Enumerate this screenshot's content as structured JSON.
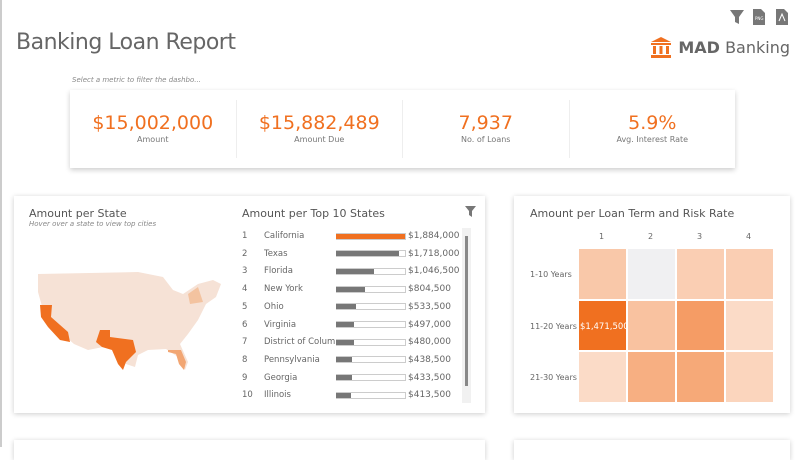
{
  "header": {
    "title": "Banking Loan Report",
    "brand_strong": "MAD",
    "brand_rest": "Banking",
    "icons": [
      "filter-icon",
      "png-export-icon",
      "pdf-export-icon",
      "bank-icon"
    ],
    "hint": "Select a metric to filter the dashbo..."
  },
  "kpis": [
    {
      "value": "$15,002,000",
      "label": "Amount"
    },
    {
      "value": "$15,882,489",
      "label": "Amount Due"
    },
    {
      "value": "7,937",
      "label": "No. of Loans"
    },
    {
      "value": "5.9%",
      "label": "Avg. Interest Rate"
    }
  ],
  "colors": {
    "accent": "#f07020",
    "bar": "#777777"
  },
  "map": {
    "title": "Amount per State",
    "subtitle": "Hover over a state to view top cities",
    "highlighted": [
      "California",
      "Texas",
      "Florida",
      "New York"
    ]
  },
  "top_states": {
    "title": "Amount per Top 10 States",
    "rows": [
      {
        "rank": "1",
        "name": "California",
        "amount": "$1,884,000",
        "value": 1884000
      },
      {
        "rank": "2",
        "name": "Texas",
        "amount": "$1,718,000",
        "value": 1718000
      },
      {
        "rank": "3",
        "name": "Florida",
        "amount": "$1,046,500",
        "value": 1046500
      },
      {
        "rank": "4",
        "name": "New York",
        "amount": "$804,500",
        "value": 804500
      },
      {
        "rank": "5",
        "name": "Ohio",
        "amount": "$533,500",
        "value": 533500
      },
      {
        "rank": "6",
        "name": "Virginia",
        "amount": "$497,000",
        "value": 497000
      },
      {
        "rank": "7",
        "name": "District of Colum...",
        "amount": "$480,000",
        "value": 480000
      },
      {
        "rank": "8",
        "name": "Pennsylvania",
        "amount": "$438,500",
        "value": 438500
      },
      {
        "rank": "9",
        "name": "Georgia",
        "amount": "$433,500",
        "value": 433500
      },
      {
        "rank": "10",
        "name": "Illinois",
        "amount": "$413,500",
        "value": 413500
      }
    ]
  },
  "heatmap": {
    "title": "Amount per Loan Term and Risk Rate",
    "columns": [
      "1",
      "2",
      "3",
      "4"
    ],
    "rows": [
      "1-10 Years",
      "11-20 Years",
      "21-30 Years"
    ],
    "intensity": [
      [
        0.3,
        0.0,
        0.25,
        0.25
      ],
      [
        1.0,
        0.35,
        0.65,
        0.15
      ],
      [
        0.15,
        0.5,
        0.55,
        0.2
      ]
    ],
    "label": {
      "row": 1,
      "col": 0,
      "text": "$1,471,500"
    }
  }
}
